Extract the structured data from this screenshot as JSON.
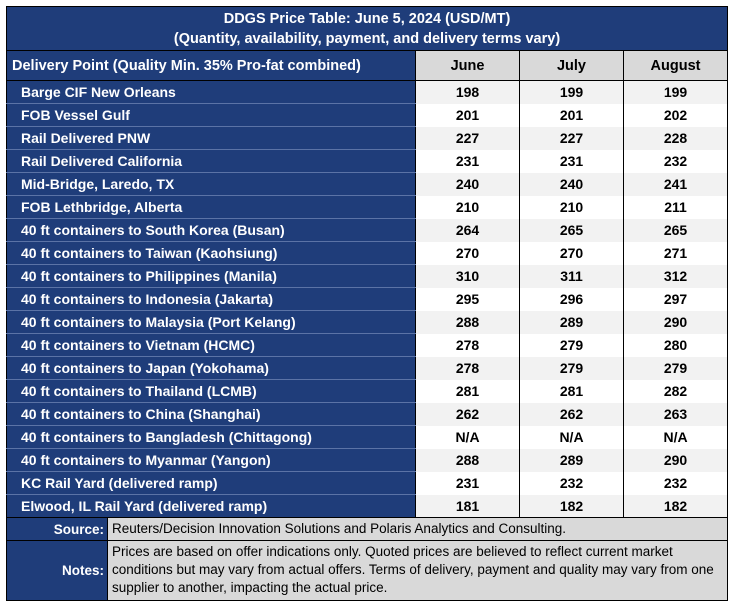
{
  "title": {
    "line1": "DDGS Price Table: June 5, 2024 (USD/MT)",
    "line2": "(Quantity, availability, payment, and delivery terms vary)"
  },
  "header": {
    "delivery_point": "Delivery Point (Quality Min. 35% Pro-fat combined)",
    "months": [
      "June",
      "July",
      "August"
    ]
  },
  "rows": [
    {
      "name": "Barge CIF New Orleans",
      "values": [
        "198",
        "199",
        "199"
      ]
    },
    {
      "name": "FOB Vessel Gulf",
      "values": [
        "201",
        "201",
        "202"
      ]
    },
    {
      "name": "Rail Delivered PNW",
      "values": [
        "227",
        "227",
        "228"
      ]
    },
    {
      "name": "Rail Delivered California",
      "values": [
        "231",
        "231",
        "232"
      ]
    },
    {
      "name": "Mid-Bridge, Laredo, TX",
      "values": [
        "240",
        "240",
        "241"
      ]
    },
    {
      "name": "FOB Lethbridge, Alberta",
      "values": [
        "210",
        "210",
        "211"
      ]
    },
    {
      "name": "40 ft containers to South Korea (Busan)",
      "values": [
        "264",
        "265",
        "265"
      ]
    },
    {
      "name": "40 ft containers to Taiwan (Kaohsiung)",
      "values": [
        "270",
        "270",
        "271"
      ]
    },
    {
      "name": "40 ft containers to Philippines (Manila)",
      "values": [
        "310",
        "311",
        "312"
      ]
    },
    {
      "name": "40 ft containers to Indonesia (Jakarta)",
      "values": [
        "295",
        "296",
        "297"
      ]
    },
    {
      "name": "40 ft containers to Malaysia (Port Kelang)",
      "values": [
        "288",
        "289",
        "290"
      ]
    },
    {
      "name": "40 ft containers to Vietnam (HCMC)",
      "values": [
        "278",
        "279",
        "280"
      ]
    },
    {
      "name": "40 ft containers to Japan (Yokohama)",
      "values": [
        "278",
        "279",
        "279"
      ]
    },
    {
      "name": "40 ft containers to Thailand (LCMB)",
      "values": [
        "281",
        "281",
        "282"
      ]
    },
    {
      "name": "40 ft containers to China (Shanghai)",
      "values": [
        "262",
        "262",
        "263"
      ]
    },
    {
      "name": "40 ft containers to Bangladesh (Chittagong)",
      "values": [
        "N/A",
        "N/A",
        "N/A"
      ]
    },
    {
      "name": "40 ft containers to Myanmar (Yangon)",
      "values": [
        "288",
        "289",
        "290"
      ]
    },
    {
      "name": "KC Rail Yard (delivered ramp)",
      "values": [
        "231",
        "232",
        "232"
      ]
    },
    {
      "name": "Elwood, IL Rail Yard (delivered ramp)",
      "values": [
        "181",
        "182",
        "182"
      ]
    }
  ],
  "footer": {
    "source_label": "Source:",
    "source_text": "Reuters/Decision Innovation Solutions and Polaris Analytics and Consulting.",
    "notes_label": "Notes:",
    "notes_text": "Prices are based on offer indications only. Quoted prices are believed to reflect current market conditions but may vary from actual offers. Terms of delivery, payment and quality may vary from one supplier to another, impacting the actual price."
  },
  "colors": {
    "navy": "#1f3d7a",
    "header_gray": "#d9d9d9",
    "stripe": "#f2f2f2"
  }
}
